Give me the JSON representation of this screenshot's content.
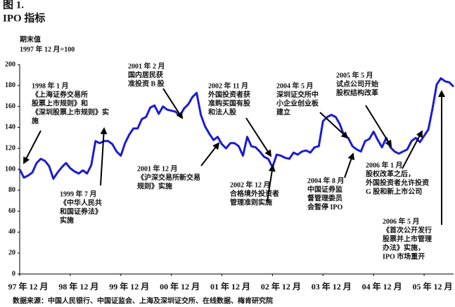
{
  "chart_data": {
    "type": "line",
    "figure_label": "图 1.",
    "title": "IPO 指标",
    "y_label": [
      "期末值",
      "1997 年 12 月=100"
    ],
    "source": "数据来源：中国人民银行、中国证监会、上海及深圳证交所、在线数据、梅肯研究院",
    "color": "#1c1ccf",
    "categories": [
      "97 年 12 月",
      null,
      null,
      null,
      null,
      null,
      null,
      null,
      null,
      null,
      null,
      null,
      "98 年 12 月",
      null,
      null,
      null,
      null,
      null,
      null,
      null,
      null,
      null,
      null,
      null,
      "99 年 12 月",
      null,
      null,
      null,
      null,
      null,
      null,
      null,
      null,
      null,
      null,
      null,
      "00 年 12 月",
      null,
      null,
      null,
      null,
      null,
      null,
      null,
      null,
      null,
      null,
      null,
      "01 年 12 月",
      null,
      null,
      null,
      null,
      null,
      null,
      null,
      null,
      null,
      null,
      null,
      "02 年 12 月",
      null,
      null,
      null,
      null,
      null,
      null,
      null,
      null,
      null,
      null,
      null,
      "03 年 12 月",
      null,
      null,
      null,
      null,
      null,
      null,
      null,
      null,
      null,
      null,
      null,
      "04 年 12 月",
      null,
      null,
      null,
      null,
      null,
      null,
      null,
      null,
      null,
      null,
      null,
      "05 年 12 月",
      null,
      null,
      null,
      null,
      null,
      null,
      null
    ],
    "values": [
      100,
      92,
      94,
      97,
      106,
      110,
      108,
      103,
      91,
      97,
      102,
      106,
      101,
      98,
      96,
      99,
      96,
      104,
      127,
      125,
      127,
      127,
      124,
      117,
      113,
      125,
      133,
      139,
      139,
      148,
      150,
      159,
      161,
      153,
      160,
      157,
      156,
      155,
      151,
      158,
      162,
      169,
      173,
      152,
      141,
      134,
      128,
      131,
      124,
      120,
      125,
      125,
      122,
      113,
      131,
      122,
      121,
      117,
      112,
      110,
      102,
      114,
      113,
      111,
      110,
      116,
      114,
      117,
      118,
      116,
      121,
      122,
      146,
      150,
      152,
      150,
      143,
      132,
      130,
      122,
      119,
      117,
      127,
      129,
      136,
      128,
      121,
      130,
      121,
      117,
      115,
      117,
      119,
      127,
      130,
      126,
      132,
      138,
      158,
      181,
      187,
      184,
      183,
      179
    ],
    "ylim": [
      0,
      200
    ],
    "yticks": [
      0,
      20,
      40,
      60,
      80,
      100,
      120,
      140,
      160,
      180,
      200
    ],
    "grid": false,
    "annotations": [
      {
        "lines": [
          "1998 年 1 月",
          "《上海证券交易所",
          "股票上市规则》和",
          "《深圳股票上市规则》实",
          "施"
        ]
      },
      {
        "lines": [
          "1999 年 7 月",
          "《中华人民共",
          "和国证券法》",
          "实施"
        ]
      },
      {
        "lines": [
          "2001 年 2 月",
          "国内居民获",
          "准投资 B 股"
        ]
      },
      {
        "lines": [
          "2001 年 12 月",
          "《沪深交易所新交易",
          "规则》实施"
        ]
      },
      {
        "lines": [
          "2002 年 11 月",
          "外国投资者获",
          "准购买国有股",
          "和法人股"
        ]
      },
      {
        "lines": [
          "2002 年 12 月",
          "合格境外投资者",
          "管理准则实施"
        ]
      },
      {
        "lines": [
          "2004 年 5 月",
          "深圳证交所中",
          "小企业创业板",
          "建立"
        ]
      },
      {
        "lines": [
          "2004 年 8 月",
          "中国证券监",
          "督管理委员",
          "会暂停 IPO"
        ]
      },
      {
        "lines": [
          "2005 年 5 月",
          "试点公司开始",
          "股权结构改革"
        ]
      },
      {
        "lines": [
          "2006 年 1 月",
          "股权改革之后，",
          "外国投资者允许投资",
          "G 股和新上市公司"
        ]
      },
      {
        "lines": [
          "2006 年 5 月",
          "《首次公开发行",
          "股票并上市管理",
          "办法》实施，",
          "IPO 市场重开"
        ]
      }
    ]
  }
}
